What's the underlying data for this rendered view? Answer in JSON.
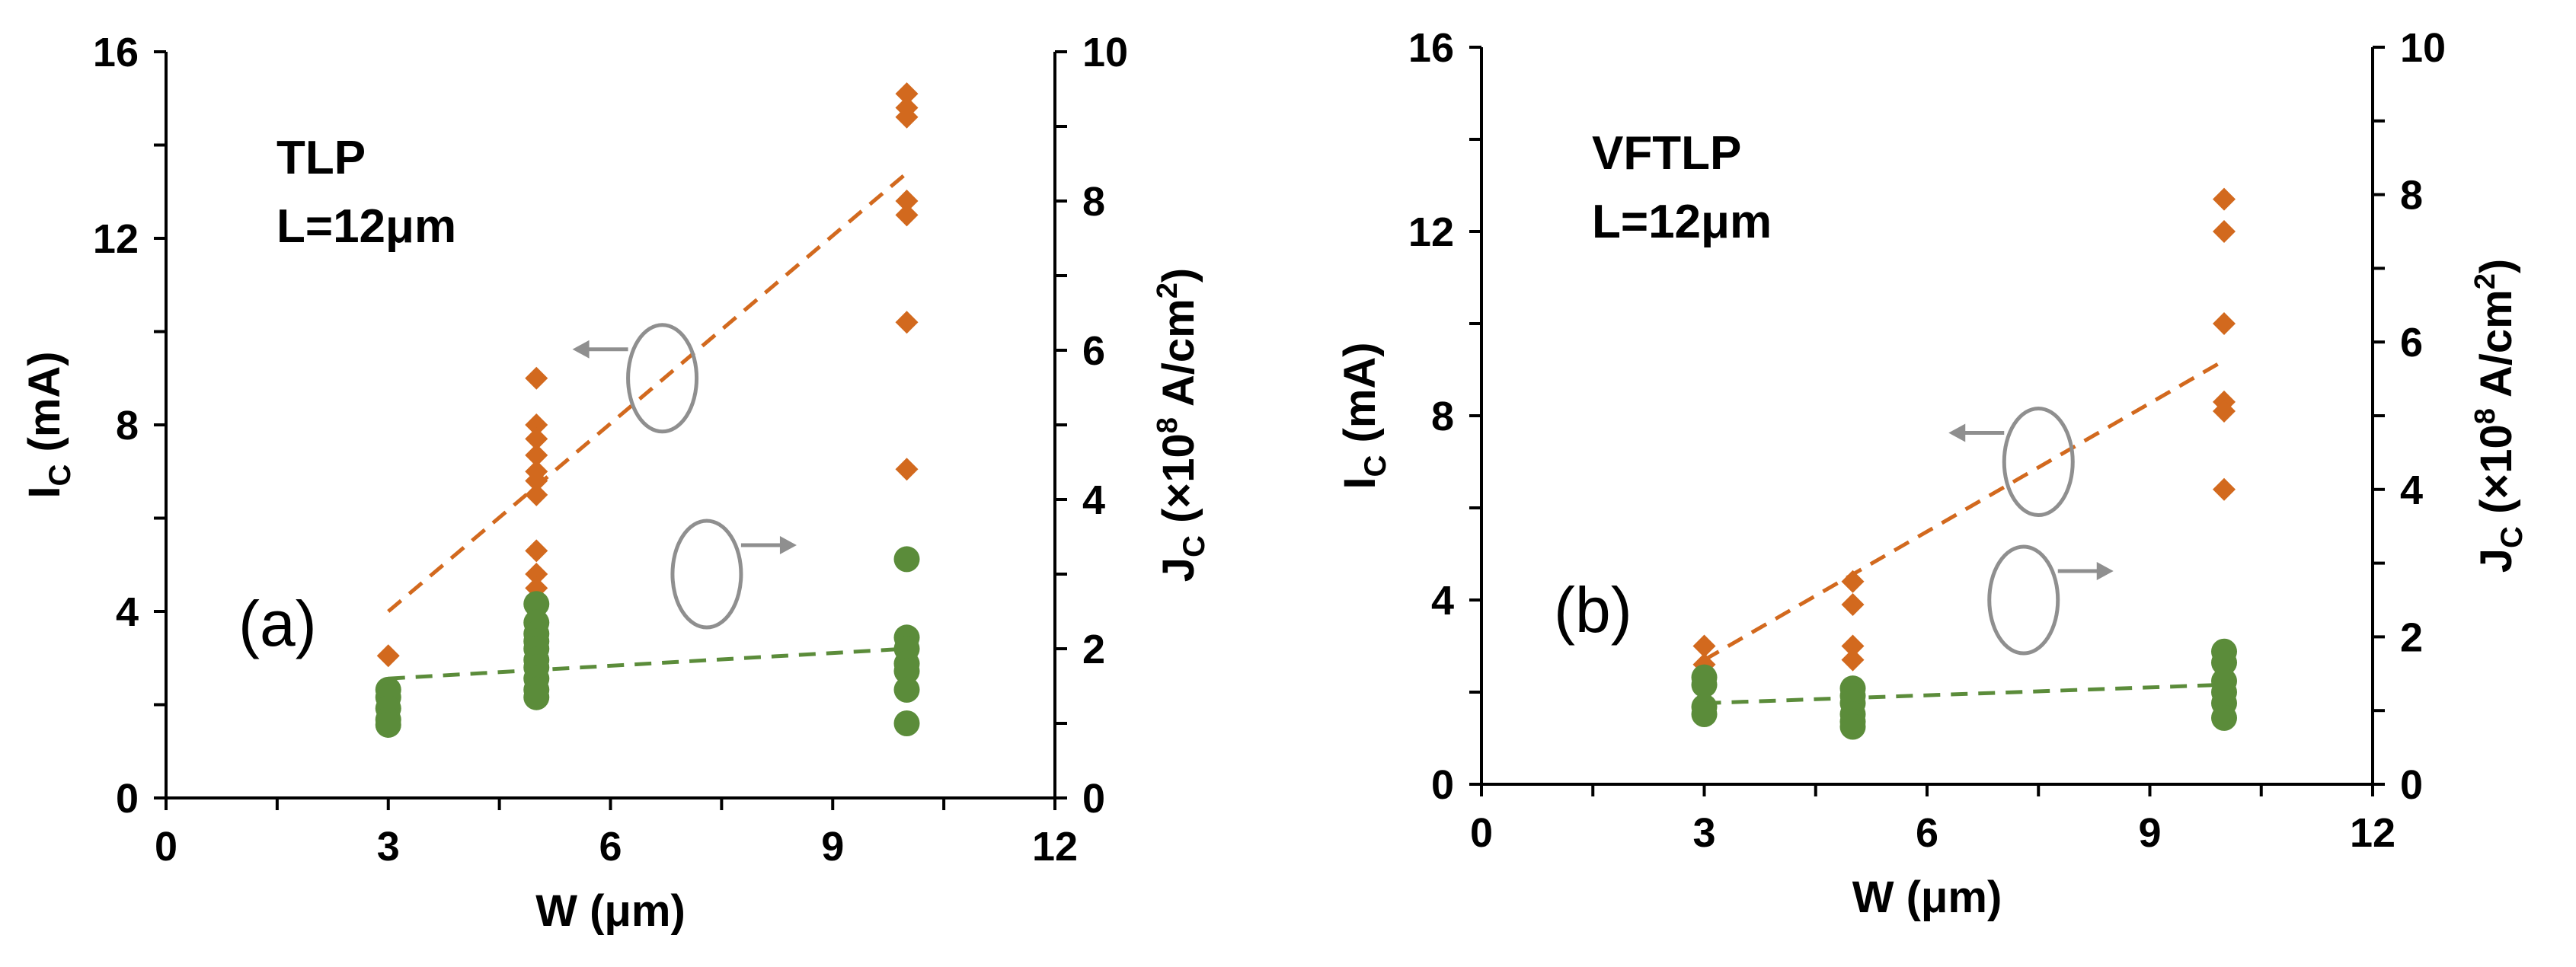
{
  "colors": {
    "ic_series": "#D2691E",
    "jc_series": "#5B8C3A",
    "annotation": "#8F8F8F",
    "axis": "#000000"
  },
  "chart_data": [
    {
      "type": "scatter",
      "panel_label": "(a)",
      "annotation": {
        "line1": "TLP",
        "line2": "L=12μm"
      },
      "xlabel": "W (μm)",
      "ylabel_left": {
        "main": "I",
        "sub": "C",
        "units": " (mA)"
      },
      "ylabel_right": {
        "main": "J",
        "sub": "C",
        "units": " (×10",
        "exp": "8",
        "units2": " A/cm",
        "exp2": "2",
        "close": ")"
      },
      "xlim": [
        0,
        12
      ],
      "xticks": [
        "0",
        "3",
        "6",
        "9",
        "12"
      ],
      "ylim_left": [
        0,
        16
      ],
      "yticks_left": [
        "0",
        "4",
        "8",
        "12",
        "16"
      ],
      "ylim_right": [
        0,
        10
      ],
      "yticks_right": [
        "0",
        "2",
        "4",
        "6",
        "8",
        "10"
      ],
      "series": [
        {
          "name": "IC",
          "axis": "left",
          "marker": "diamond",
          "points": [
            [
              3,
              3.05
            ],
            [
              3,
              2.3
            ],
            [
              3,
              1.95
            ],
            [
              5,
              9.0
            ],
            [
              5,
              8.0
            ],
            [
              5,
              7.7
            ],
            [
              5,
              7.35
            ],
            [
              5,
              7.0
            ],
            [
              5,
              6.8
            ],
            [
              5,
              6.5
            ],
            [
              5,
              5.3
            ],
            [
              5,
              4.8
            ],
            [
              5,
              4.5
            ],
            [
              5,
              3.5
            ],
            [
              5,
              3.2
            ],
            [
              10,
              15.1
            ],
            [
              10,
              14.8
            ],
            [
              10,
              14.6
            ],
            [
              10,
              12.8
            ],
            [
              10,
              12.5
            ],
            [
              10,
              10.2
            ],
            [
              10,
              7.05
            ]
          ],
          "trend": [
            [
              3,
              4.0
            ],
            [
              10,
              13.4
            ]
          ]
        },
        {
          "name": "JC",
          "axis": "right",
          "marker": "circle",
          "points": [
            [
              3,
              1.45
            ],
            [
              3,
              1.35
            ],
            [
              3,
              1.2
            ],
            [
              3,
              1.05
            ],
            [
              3,
              0.98
            ],
            [
              5,
              2.6
            ],
            [
              5,
              2.35
            ],
            [
              5,
              2.2
            ],
            [
              5,
              2.1
            ],
            [
              5,
              2.0
            ],
            [
              5,
              1.85
            ],
            [
              5,
              1.75
            ],
            [
              5,
              1.6
            ],
            [
              5,
              1.45
            ],
            [
              5,
              1.35
            ],
            [
              10,
              3.2
            ],
            [
              10,
              2.15
            ],
            [
              10,
              2.0
            ],
            [
              10,
              1.8
            ],
            [
              10,
              1.7
            ],
            [
              10,
              1.45
            ],
            [
              10,
              1.0
            ]
          ],
          "trend": [
            [
              3,
              1.6
            ],
            [
              10,
              2.0
            ]
          ]
        }
      ],
      "arrows": {
        "left_center": [
          6.7,
          9.0
        ],
        "right_center": [
          7.3,
          3.0
        ]
      }
    },
    {
      "type": "scatter",
      "panel_label": "(b)",
      "annotation": {
        "line1": "VFTLP",
        "line2": "L=12μm"
      },
      "xlabel": "W (μm)",
      "ylabel_left": {
        "main": "I",
        "sub": "C",
        "units": " (mA)"
      },
      "ylabel_right": {
        "main": "J",
        "sub": "C",
        "units": " (×10",
        "exp": "8",
        "units2": " A/cm",
        "exp2": "2",
        "close": ")"
      },
      "xlim": [
        0,
        12
      ],
      "xticks": [
        "0",
        "3",
        "6",
        "9",
        "12"
      ],
      "ylim_left": [
        0,
        16
      ],
      "yticks_left": [
        "0",
        "4",
        "8",
        "12",
        "16"
      ],
      "ylim_right": [
        0,
        10
      ],
      "yticks_right": [
        "0",
        "2",
        "4",
        "6",
        "8",
        "10"
      ],
      "series": [
        {
          "name": "IC",
          "axis": "left",
          "marker": "diamond",
          "points": [
            [
              3,
              3.0
            ],
            [
              3,
              2.6
            ],
            [
              3,
              2.2
            ],
            [
              5,
              4.4
            ],
            [
              5,
              3.9
            ],
            [
              5,
              3.0
            ],
            [
              5,
              2.7
            ],
            [
              5,
              2.0
            ],
            [
              5,
              1.6
            ],
            [
              10,
              12.7
            ],
            [
              10,
              12.0
            ],
            [
              10,
              10.0
            ],
            [
              10,
              8.3
            ],
            [
              10,
              8.1
            ],
            [
              10,
              6.4
            ]
          ],
          "trend": [
            [
              3,
              2.7
            ],
            [
              10,
              9.2
            ]
          ]
        },
        {
          "name": "JC",
          "axis": "right",
          "marker": "circle",
          "points": [
            [
              3,
              1.45
            ],
            [
              3,
              1.35
            ],
            [
              3,
              1.05
            ],
            [
              3,
              0.95
            ],
            [
              5,
              1.3
            ],
            [
              5,
              1.2
            ],
            [
              5,
              1.1
            ],
            [
              5,
              0.95
            ],
            [
              5,
              0.85
            ],
            [
              5,
              0.78
            ],
            [
              10,
              1.8
            ],
            [
              10,
              1.65
            ],
            [
              10,
              1.4
            ],
            [
              10,
              1.25
            ],
            [
              10,
              1.1
            ],
            [
              10,
              0.9
            ]
          ],
          "trend": [
            [
              3,
              1.1
            ],
            [
              10,
              1.35
            ]
          ]
        }
      ],
      "arrows": {
        "left_center": [
          7.5,
          7.0
        ],
        "right_center": [
          7.3,
          2.5
        ]
      }
    }
  ]
}
